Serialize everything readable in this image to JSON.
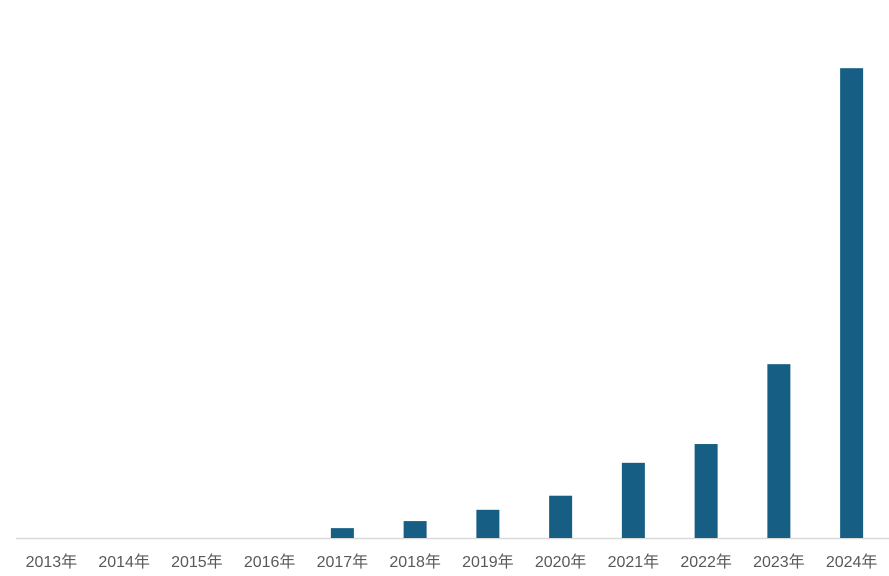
{
  "chart_data": {
    "type": "bar",
    "categories": [
      "2013年",
      "2014年",
      "2015年",
      "2016年",
      "2017年",
      "2018年",
      "2019年",
      "2020年",
      "2021年",
      "2022年",
      "2023年",
      "2024年"
    ],
    "values": [
      0,
      0,
      0,
      0,
      2.1,
      3.6,
      6,
      9,
      16,
      20,
      37,
      100
    ],
    "color": "#165e83",
    "ylim": [
      0,
      106
    ]
  }
}
